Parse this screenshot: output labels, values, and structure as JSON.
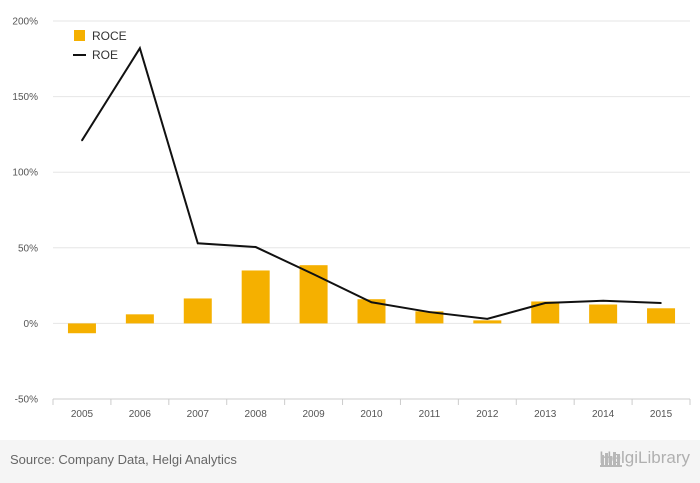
{
  "chart_data": {
    "type": "bar",
    "categories": [
      "2005",
      "2006",
      "2007",
      "2008",
      "2009",
      "2010",
      "2011",
      "2012",
      "2013",
      "2014",
      "2015"
    ],
    "series": [
      {
        "name": "ROCE",
        "kind": "bar",
        "color": "#f5b000",
        "values": [
          -6.5,
          6,
          16.5,
          35,
          38.5,
          16,
          8,
          2,
          14.5,
          12.5,
          10
        ]
      },
      {
        "name": "ROE",
        "kind": "line",
        "color": "#111111",
        "values": [
          121,
          182,
          53,
          50.5,
          32.5,
          14,
          7.5,
          3,
          13.5,
          15,
          13.5
        ]
      }
    ],
    "ylim": [
      -50,
      200
    ],
    "yticks": [
      -50,
      0,
      50,
      100,
      150,
      200
    ],
    "ytick_labels": [
      "-50%",
      "0%",
      "50%",
      "100%",
      "150%",
      "200%"
    ],
    "grid": true,
    "legend_position": "top-left"
  },
  "footer": {
    "source": "Source: Company Data, Helgi Analytics",
    "brand": "HelgiLibrary"
  }
}
